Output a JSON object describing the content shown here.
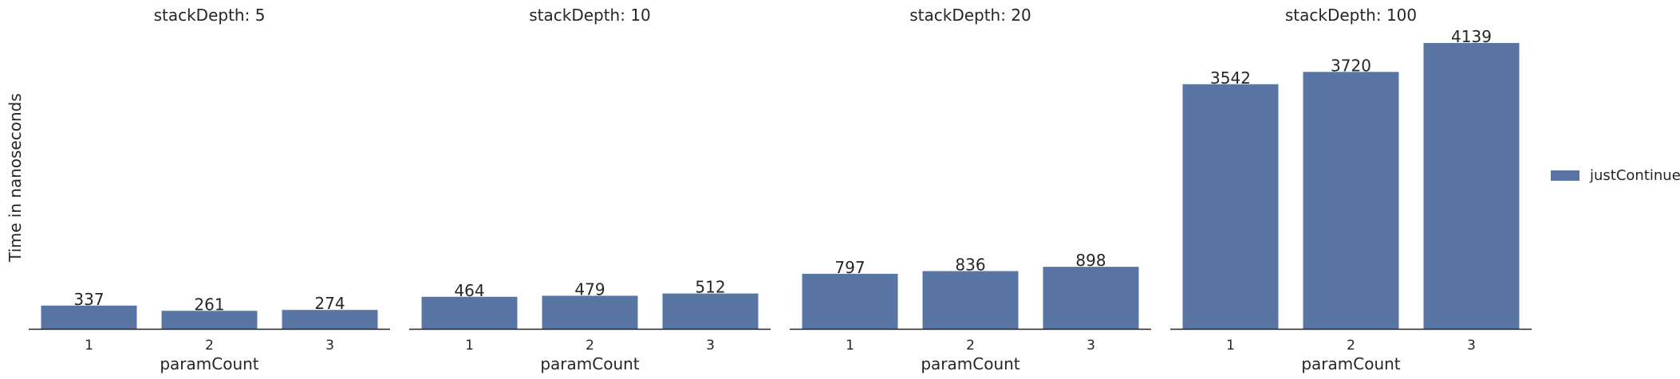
{
  "chart_data": {
    "type": "bar",
    "ylabel": "Time in nanoseconds",
    "xlabel": "paramCount",
    "bar_color": "#5975a4",
    "legend": {
      "entries": [
        "justContinue"
      ],
      "placement": "right"
    },
    "shared_y_range": [
      0,
      4300
    ],
    "grid": false,
    "panels": [
      {
        "title": "stackDepth: 5",
        "categories": [
          "1",
          "2",
          "3"
        ],
        "series": [
          {
            "name": "justContinue",
            "values": [
              337,
              261,
              274
            ]
          }
        ]
      },
      {
        "title": "stackDepth: 10",
        "categories": [
          "1",
          "2",
          "3"
        ],
        "series": [
          {
            "name": "justContinue",
            "values": [
              464,
              479,
              512
            ]
          }
        ]
      },
      {
        "title": "stackDepth: 20",
        "categories": [
          "1",
          "2",
          "3"
        ],
        "series": [
          {
            "name": "justContinue",
            "values": [
              797,
              836,
              898
            ]
          }
        ]
      },
      {
        "title": "stackDepth: 100",
        "categories": [
          "1",
          "2",
          "3"
        ],
        "series": [
          {
            "name": "justContinue",
            "values": [
              3542,
              3720,
              4139
            ]
          }
        ]
      }
    ]
  }
}
